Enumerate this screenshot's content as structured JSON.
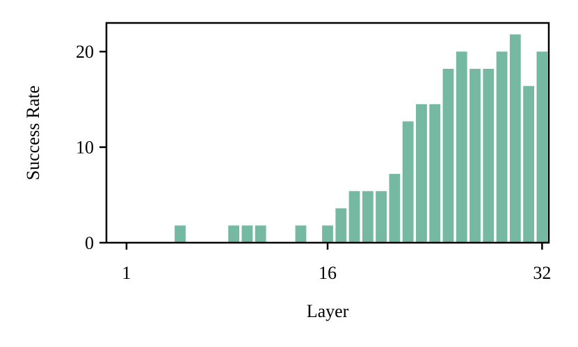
{
  "chart_data": {
    "type": "bar",
    "xlabel": "Layer",
    "ylabel": "Success Rate",
    "x": [
      1,
      2,
      3,
      4,
      5,
      6,
      7,
      8,
      9,
      10,
      11,
      12,
      13,
      14,
      15,
      16,
      17,
      18,
      19,
      20,
      21,
      22,
      23,
      24,
      25,
      26,
      27,
      28,
      29,
      30,
      31,
      32
    ],
    "values": [
      0,
      0,
      0,
      0,
      1.8,
      0,
      0,
      0,
      1.8,
      1.8,
      1.8,
      0,
      0,
      1.8,
      0,
      1.8,
      3.6,
      5.4,
      5.4,
      5.4,
      7.2,
      12.7,
      14.5,
      14.5,
      18.2,
      20,
      18.2,
      18.2,
      20,
      21.8,
      16.4,
      20
    ],
    "xticks": [
      "1",
      "16",
      "32"
    ],
    "yticks": [
      "0",
      "10",
      "20"
    ],
    "xlim": [
      -0.5,
      32.5
    ],
    "ylim": [
      0,
      23
    ],
    "grid": false,
    "bar_color": "#76b9a3"
  }
}
